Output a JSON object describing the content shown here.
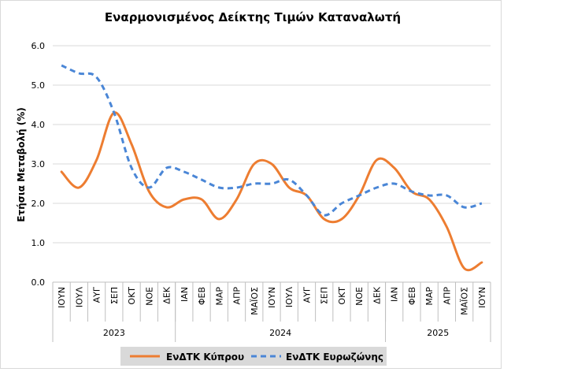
{
  "chart_data": {
    "type": "line",
    "title": "Εναρμονισμένος Δείκτης Τιμών Καταναλωτή",
    "ylabel": "Ετήσια Μεταβολή (%)",
    "xlabel": "",
    "ylim": [
      0,
      6
    ],
    "yticks": [
      "0.0",
      "1.0",
      "2.0",
      "3.0",
      "4.0",
      "5.0",
      "6.0"
    ],
    "grid": true,
    "legend_position": "bottom",
    "categories": [
      "ΙΟΥΝ",
      "ΙΟΥΛ",
      "ΑΥΓ",
      "ΣΕΠ",
      "ΟΚΤ",
      "ΝΟΕ",
      "ΔΕΚ",
      "ΙΑΝ",
      "ΦΕΒ",
      "ΜΑΡ",
      "ΑΠΡ",
      "ΜΑΪΟΣ",
      "ΙΟΥΝ",
      "ΙΟΥΛ",
      "ΑΥΓ",
      "ΣΕΠ",
      "ΟΚΤ",
      "ΝΟΕ",
      "ΔΕΚ",
      "ΙΑΝ",
      "ΦΕΒ",
      "ΜΑΡ",
      "ΑΠΡ",
      "ΜΑΪΟΣ",
      "ΙΟΥΝ"
    ],
    "year_groups": [
      {
        "label": "2023",
        "count": 7
      },
      {
        "label": "2024",
        "count": 12
      },
      {
        "label": "2025",
        "count": 6
      }
    ],
    "series": [
      {
        "name": "ΕνΔΤΚ Κύπρου",
        "color": "#ed7d31",
        "style": "solid",
        "values": [
          2.8,
          2.4,
          3.1,
          4.3,
          3.5,
          2.3,
          1.9,
          2.1,
          2.1,
          1.6,
          2.1,
          3.0,
          3.0,
          2.4,
          2.2,
          1.6,
          1.6,
          2.2,
          3.1,
          2.9,
          2.3,
          2.1,
          1.4,
          0.35,
          0.5
        ]
      },
      {
        "name": "ΕνΔΤΚ Ευρωζώνης",
        "color": "#4a86d6",
        "style": "dashed",
        "values": [
          5.5,
          5.3,
          5.2,
          4.3,
          2.9,
          2.4,
          2.9,
          2.8,
          2.6,
          2.4,
          2.4,
          2.5,
          2.5,
          2.6,
          2.2,
          1.7,
          2.0,
          2.2,
          2.4,
          2.5,
          2.3,
          2.2,
          2.2,
          1.9,
          2.0
        ]
      }
    ]
  }
}
